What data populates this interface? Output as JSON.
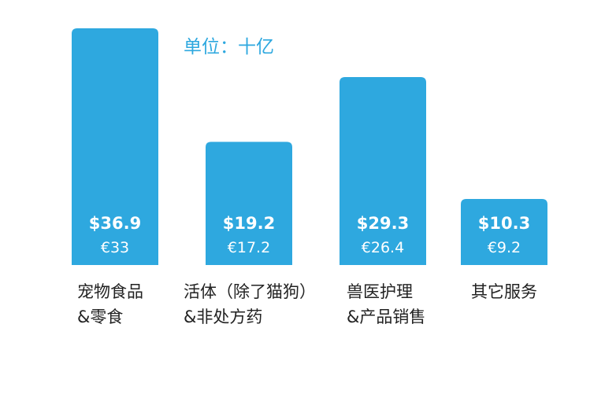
{
  "chart_data": {
    "type": "bar",
    "unit_note": "单位：十亿",
    "categories": [
      [
        "宠物食品",
        "&零食"
      ],
      [
        "活体（除了猫狗）",
        "&非处方药"
      ],
      [
        "兽医护理",
        "&产品销售"
      ],
      [
        "其它服务"
      ]
    ],
    "series": [
      {
        "values": [
          36.9,
          19.2,
          29.3,
          10.3
        ]
      },
      {
        "values": [
          33,
          17.2,
          26.4,
          9.2
        ]
      }
    ],
    "usd_labels": [
      "$36.9",
      "$19.2",
      "$29.3",
      "$10.3"
    ],
    "eur_labels": [
      "€33",
      "€17.2",
      "€26.4",
      "€9.2"
    ],
    "bar_color": "#2ea8df",
    "label_color": "#ffffff",
    "unit_color": "#2ea8df",
    "ylim": [
      0,
      36.9
    ]
  }
}
